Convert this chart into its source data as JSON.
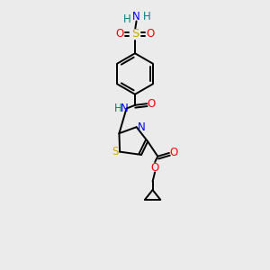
{
  "bg_color": "#ebebeb",
  "atom_colors": {
    "C": "#000000",
    "N": "#0000ff",
    "O": "#ff0000",
    "S_sulfonamide": "#ccaa00",
    "S_thiazole": "#ccaa00",
    "H": "#008080"
  },
  "bond_color": "#000000",
  "font_size": 8.5,
  "lw": 1.4
}
